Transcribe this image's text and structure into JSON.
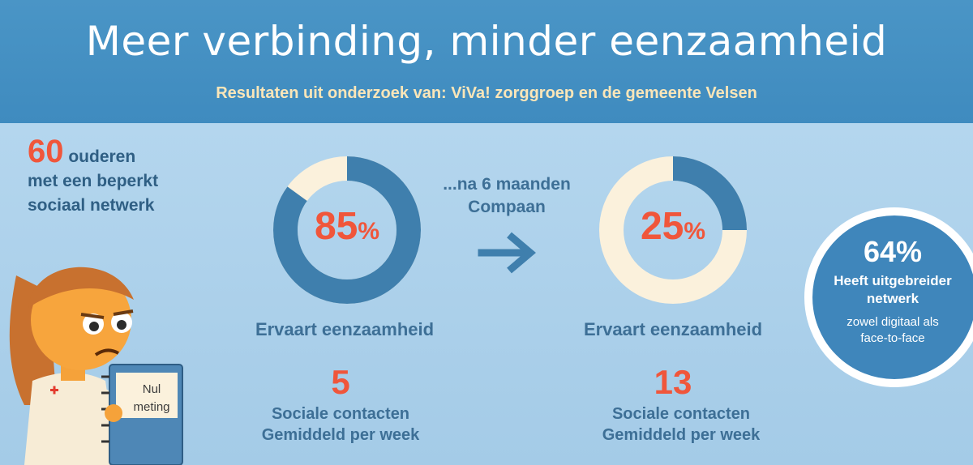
{
  "header": {
    "title": "Meer verbinding, minder eenzaamheid",
    "subtitle": "Resultaten uit onderzoek van: ViVa! zorggroep en de gemeente Velsen"
  },
  "intro": {
    "count": "60",
    "line1": "ouderen",
    "line2": "met een beperkt",
    "line3": "sociaal netwerk"
  },
  "clipboard": {
    "line1": "Nul",
    "line2": "meting"
  },
  "before": {
    "percent": "85",
    "percent_value": 85,
    "percent_symbol": "%",
    "label": "Ervaart eenzaamheid",
    "contacts": "5",
    "contacts_line1": "Sociale contacten",
    "contacts_line2": "Gemiddeld per week"
  },
  "transition": {
    "line1": "...na 6 maanden",
    "line2": "Compaan"
  },
  "after": {
    "percent": "25",
    "percent_value": 25,
    "percent_symbol": "%",
    "label": "Ervaart eenzaamheid",
    "contacts": "13",
    "contacts_line1": "Sociale contacten",
    "contacts_line2": "Gemiddeld per week"
  },
  "result": {
    "percent": "64%",
    "line1": "Heeft uitgebreider",
    "line2": "netwerk",
    "line3": "zowel digitaal als",
    "line4": "face-to-face"
  },
  "colors": {
    "accent": "#f0563b",
    "donut_fill": "#3f7fad",
    "donut_empty": "#fbf1dc"
  }
}
